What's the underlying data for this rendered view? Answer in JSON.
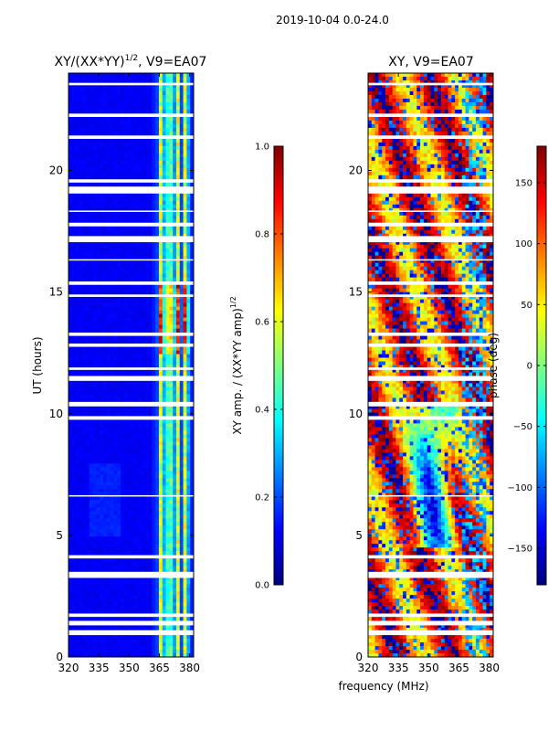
{
  "suptitle": "2019-10-04 0.0-24.0",
  "colors": {
    "jet": [
      "#00007f",
      "#0000ff",
      "#007fff",
      "#00ffff",
      "#7fff7f",
      "#ffff00",
      "#ff7f00",
      "#ff0000",
      "#7f0000"
    ],
    "gap": "#ffffff",
    "axis": "#000000"
  },
  "chart_data": [
    {
      "type": "heatmap",
      "title_main": "XY/(XX*YY)",
      "title_sup": "1/2",
      "title_tail": ", V9=EA07",
      "xlabel": "",
      "ylabel": "UT (hours)",
      "xlim": [
        320,
        382
      ],
      "ylim": [
        0,
        24
      ],
      "xticks": [
        320,
        335,
        350,
        365,
        380
      ],
      "yticks": [
        0,
        5,
        10,
        15,
        20
      ],
      "quantity": "normalized amplitude",
      "description": "Mostly low values (~0.05-0.15) across 320-360 MHz; bright stripes (0.3-0.7) at ~364-380 MHz, strongest ~12.5-15.5 h",
      "bright_channels_mhz": [
        366,
        370,
        374,
        378
      ],
      "peak_window_hours": [
        12.5,
        15.5
      ],
      "colorbar": {
        "label_main": "XY amp. / (XX*YY amp)",
        "label_sup": "1/2",
        "min": 0.0,
        "max": 1.0,
        "ticks": [
          "0.0",
          "0.2",
          "0.4",
          "0.6",
          "0.8",
          "1.0"
        ]
      }
    },
    {
      "type": "heatmap",
      "title": "XY, V9=EA07",
      "xlabel": "frequency (MHz)",
      "ylabel": "",
      "xlim": [
        320,
        382
      ],
      "ylim": [
        0,
        24
      ],
      "xticks": [
        320,
        335,
        350,
        365,
        380
      ],
      "yticks": [
        0,
        5,
        10,
        15,
        20
      ],
      "quantity": "phase (deg)",
      "description": "Phase wraps across full range; mostly warm (50-180 deg) with blue/cyan structure between ~5-10 h near 335-365 MHz",
      "colorbar": {
        "label": "phase (deg)",
        "min": -180,
        "max": 180,
        "ticks": [
          "−150",
          "−100",
          "−50",
          "0",
          "50",
          "100",
          "150"
        ],
        "tick_values": [
          -150,
          -100,
          -50,
          0,
          50,
          100,
          150
        ]
      }
    }
  ],
  "gap_bands_hours": [
    [
      0.9,
      1.1
    ],
    [
      1.3,
      1.45
    ],
    [
      1.65,
      1.75
    ],
    [
      3.25,
      3.5
    ],
    [
      4.1,
      4.15
    ],
    [
      6.6,
      6.65
    ],
    [
      9.8,
      9.9
    ],
    [
      10.3,
      10.45
    ],
    [
      11.35,
      11.55
    ],
    [
      11.8,
      11.9
    ],
    [
      12.75,
      12.85
    ],
    [
      13.2,
      13.3
    ],
    [
      14.8,
      14.9
    ],
    [
      15.3,
      15.4
    ],
    [
      16.3,
      16.35
    ],
    [
      17.05,
      17.3
    ],
    [
      17.75,
      17.85
    ],
    [
      18.3,
      18.35
    ],
    [
      19.1,
      19.3
    ],
    [
      19.55,
      19.6
    ],
    [
      21.3,
      21.4
    ],
    [
      22.2,
      22.3
    ],
    [
      23.5,
      23.6
    ]
  ]
}
